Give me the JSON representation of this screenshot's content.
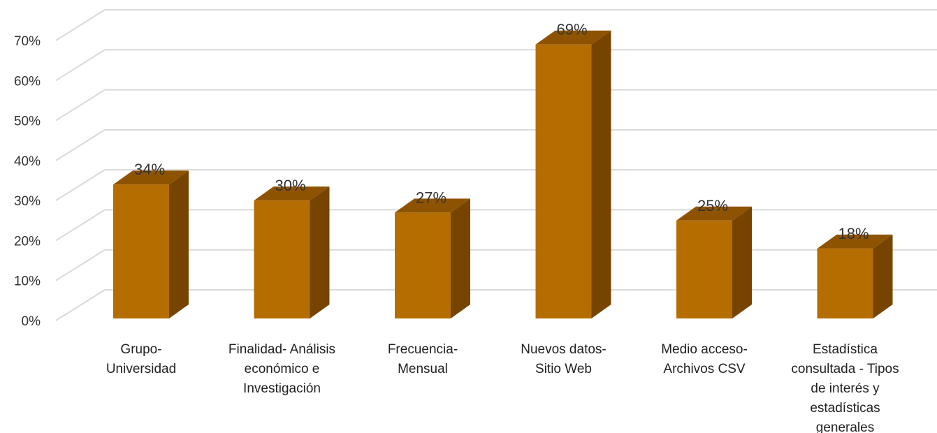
{
  "colors": {
    "bar_front": "#B56D00",
    "bar_side": "#774400",
    "bar_top": "#8E5300",
    "grid": "#D9D9D9",
    "text": "#333333"
  },
  "chart_data": {
    "type": "bar",
    "style": "3d-column",
    "grid": true,
    "legend": "none",
    "title": "",
    "xlabel": "",
    "ylabel": "",
    "ylim": [
      0,
      70
    ],
    "y_ticks": [
      "0%",
      "10%",
      "20%",
      "30%",
      "40%",
      "50%",
      "60%",
      "70%"
    ],
    "categories": [
      [
        "Grupo-",
        "Universidad"
      ],
      [
        "Finalidad- Análisis",
        "económico e",
        "Investigación"
      ],
      [
        "Frecuencia-",
        "Mensual"
      ],
      [
        "Nuevos datos-",
        "Sitio Web"
      ],
      [
        "Medio acceso-",
        "Archivos CSV"
      ],
      [
        "Estadística",
        "consultada - Tipos",
        "de interés y",
        "estadísticas",
        "generales"
      ]
    ],
    "values": [
      34,
      30,
      27,
      69,
      25,
      18
    ],
    "data_labels": [
      "34%",
      "30%",
      "27%",
      "69%",
      "25%",
      "18%"
    ]
  }
}
